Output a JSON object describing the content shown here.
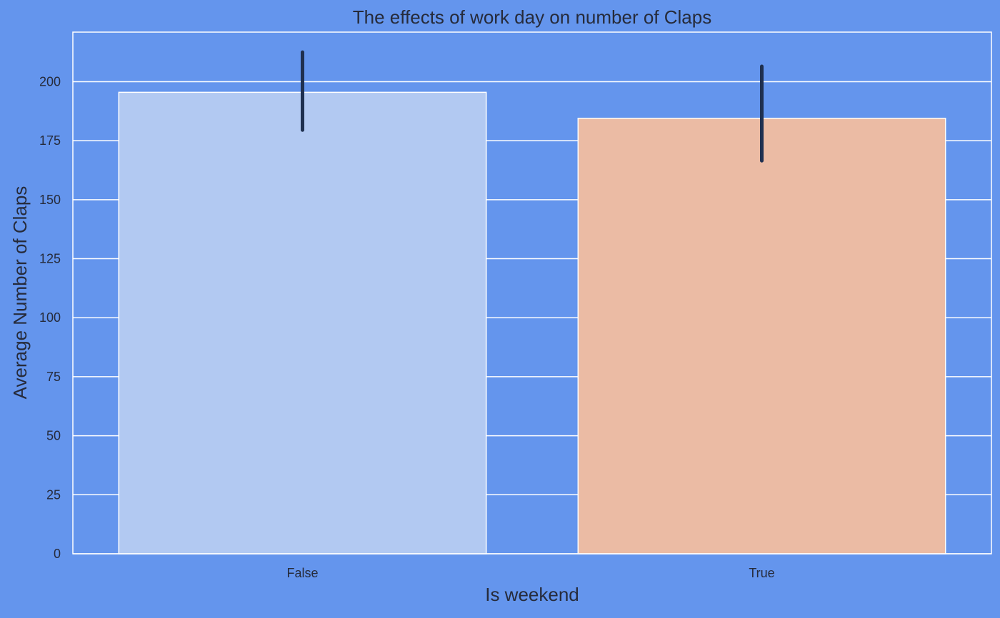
{
  "chart_data": {
    "type": "bar",
    "title": "The effects of work day on number of Claps",
    "xlabel": "Is weekend",
    "ylabel": "Average Number of Claps",
    "categories": [
      "False",
      "True"
    ],
    "values": [
      195.5,
      184.5
    ],
    "error_low": [
      179.5,
      166.5
    ],
    "error_high": [
      212.5,
      206.5
    ],
    "ylim": [
      0,
      221
    ],
    "yticks": [
      0,
      25,
      50,
      75,
      100,
      125,
      150,
      175,
      200
    ],
    "grid": true,
    "colors": {
      "background": "#6495ED",
      "bars": [
        "#B2C9F2",
        "#EBBBA4"
      ],
      "error_bar": "#1F3050",
      "grid": "#FFFFFF",
      "text": "#262B3B"
    }
  }
}
